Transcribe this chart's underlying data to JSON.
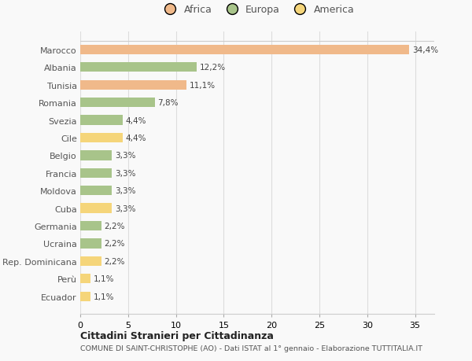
{
  "categories": [
    "Ecuador",
    "Perù",
    "Rep. Dominicana",
    "Ucraina",
    "Germania",
    "Cuba",
    "Moldova",
    "Francia",
    "Belgio",
    "Cile",
    "Svezia",
    "Romania",
    "Tunisia",
    "Albania",
    "Marocco"
  ],
  "values": [
    1.1,
    1.1,
    2.2,
    2.2,
    2.2,
    3.3,
    3.3,
    3.3,
    3.3,
    4.4,
    4.4,
    7.8,
    11.1,
    12.2,
    34.4
  ],
  "colors": [
    "#f5d57a",
    "#f5d57a",
    "#f5d57a",
    "#a8c48a",
    "#a8c48a",
    "#f5d57a",
    "#a8c48a",
    "#a8c48a",
    "#a8c48a",
    "#f5d57a",
    "#a8c48a",
    "#a8c48a",
    "#f0b98a",
    "#a8c48a",
    "#f0b98a"
  ],
  "labels": [
    "1,1%",
    "1,1%",
    "2,2%",
    "2,2%",
    "2,2%",
    "3,3%",
    "3,3%",
    "3,3%",
    "3,3%",
    "4,4%",
    "4,4%",
    "7,8%",
    "11,1%",
    "12,2%",
    "34,4%"
  ],
  "legend": [
    {
      "label": "Africa",
      "color": "#f0b98a"
    },
    {
      "label": "Europa",
      "color": "#a8c48a"
    },
    {
      "label": "America",
      "color": "#f5d57a"
    }
  ],
  "title1": "Cittadini Stranieri per Cittadinanza",
  "title2": "COMUNE DI SAINT-CHRISTOPHE (AO) - Dati ISTAT al 1° gennaio - Elaborazione TUTTITALIA.IT",
  "xlim": [
    0,
    37
  ],
  "xticks": [
    0,
    5,
    10,
    15,
    20,
    25,
    30,
    35
  ],
  "background_color": "#f9f9f9",
  "grid_color": "#dddddd"
}
